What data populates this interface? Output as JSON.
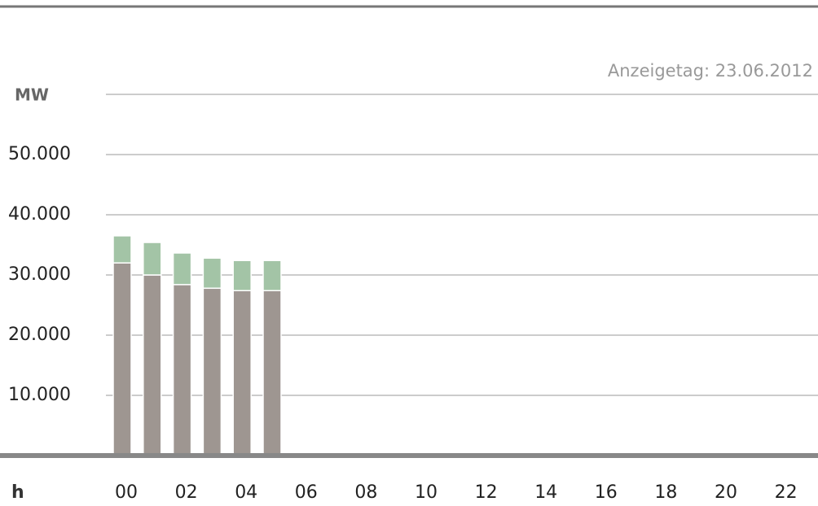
{
  "chart_data": {
    "type": "bar",
    "stacked": true,
    "subtitle": "Anzeigetag: 23.06.2012",
    "y_label": "MW",
    "x_label": "h",
    "categories": [
      "00",
      null,
      "02",
      null,
      "04",
      null,
      "06",
      null,
      "08",
      null,
      "10",
      null,
      "12",
      null,
      "14",
      null,
      "16",
      null,
      "18",
      null,
      "20",
      null,
      "22",
      null
    ],
    "series": [
      {
        "color": "#9e9691",
        "values": [
          32000,
          30000,
          28400,
          27800,
          27400,
          27400,
          null,
          null,
          null,
          null,
          null,
          null,
          null,
          null,
          null,
          null,
          null,
          null,
          null,
          null,
          null,
          null,
          null,
          null
        ]
      },
      {
        "color": "#a3c4a6",
        "values": [
          4500,
          5400,
          5250,
          5000,
          5000,
          5000,
          null,
          null,
          null,
          null,
          null,
          null,
          null,
          null,
          null,
          null,
          null,
          null,
          null,
          null,
          null,
          null,
          null,
          null
        ]
      }
    ],
    "ylim": [
      0,
      60000
    ],
    "yticks": [
      {
        "value": 10000,
        "label": "10.000"
      },
      {
        "value": 20000,
        "label": "20.000"
      },
      {
        "value": 30000,
        "label": "30.000"
      },
      {
        "value": 40000,
        "label": "40.000"
      },
      {
        "value": 50000,
        "label": "50.000"
      }
    ],
    "grid": true
  }
}
